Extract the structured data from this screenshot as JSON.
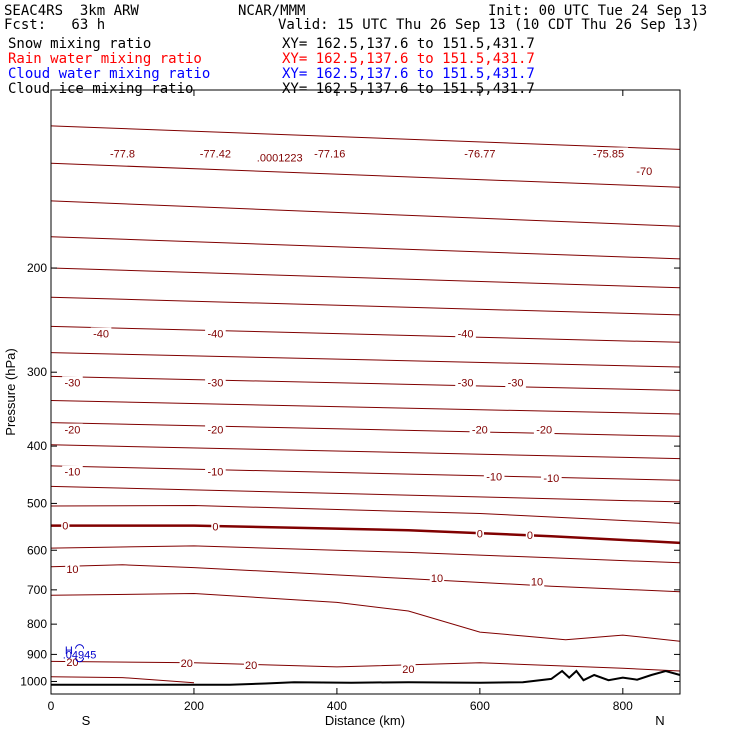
{
  "header": {
    "model": "SEAC4RS  3km ARW",
    "org": "NCAR/MMM",
    "init": "Init: 00 UTC Tue 24 Sep 13",
    "fcst": "Fcst:   63 h",
    "valid": "Valid: 15 UTC Thu 26 Sep 13 (10 CDT Thu 26 Sep 13)"
  },
  "fields": [
    {
      "name": "Snow mixing ratio",
      "xy": "XY= 162.5,137.6 to 151.5,431.7",
      "color": "#000000"
    },
    {
      "name": "Rain water mixing ratio",
      "xy": "XY= 162.5,137.6 to 151.5,431.7",
      "color": "#ff0000"
    },
    {
      "name": "Cloud water mixing ratio",
      "xy": "XY= 162.5,137.6 to 151.5,431.7",
      "color": "#0000ff"
    },
    {
      "name": "Cloud ice mixing ratio",
      "xy": "XY= 162.5,137.6 to 151.5,431.7",
      "color": "#000000"
    }
  ],
  "colors": {
    "contour": "#800000",
    "terrain": "#000000",
    "cloud_water": "#0000cc"
  },
  "chart_data": {
    "type": "line",
    "xlabel": "Distance (km)",
    "ylabel": "Pressure (hPa)",
    "x_ticks": [
      "0",
      "200",
      "400",
      "600",
      "800"
    ],
    "y_ticks": [
      "200",
      "300",
      "400",
      "500",
      "600",
      "700",
      "800",
      "900",
      "1000"
    ],
    "xlim": [
      0,
      880
    ],
    "ylim": [
      1050,
      100
    ],
    "y_scale": "log",
    "x_endpoints": [
      "S",
      "N"
    ],
    "contours": [
      {
        "points": [
          [
            0,
            115
          ],
          [
            880,
            126
          ]
        ]
      },
      {
        "points": [
          [
            0,
            133
          ],
          [
            880,
            146
          ]
        ],
        "label": "-70"
      },
      {
        "points": [
          [
            0,
            154
          ],
          [
            880,
            170
          ]
        ]
      },
      {
        "points": [
          [
            0,
            177
          ],
          [
            880,
            193
          ]
        ]
      },
      {
        "points": [
          [
            0,
            200
          ],
          [
            880,
            216
          ]
        ]
      },
      {
        "points": [
          [
            0,
            224
          ],
          [
            880,
            240
          ]
        ]
      },
      {
        "points": [
          [
            0,
            251
          ],
          [
            880,
            267
          ]
        ],
        "label": "-40"
      },
      {
        "points": [
          [
            0,
            278
          ],
          [
            880,
            294
          ]
        ]
      },
      {
        "points": [
          [
            0,
            305
          ],
          [
            880,
            322
          ]
        ],
        "label": "-30"
      },
      {
        "points": [
          [
            0,
            335
          ],
          [
            880,
            353
          ]
        ]
      },
      {
        "points": [
          [
            0,
            365
          ],
          [
            880,
            385
          ]
        ],
        "label": "-20"
      },
      {
        "points": [
          [
            0,
            398
          ],
          [
            880,
            420
          ]
        ]
      },
      {
        "points": [
          [
            0,
            432
          ],
          [
            880,
            457
          ]
        ],
        "label": "-10"
      },
      {
        "points": [
          [
            0,
            468
          ],
          [
            880,
            497
          ]
        ]
      },
      {
        "points": [
          [
            0,
            505
          ],
          [
            200,
            504
          ],
          [
            600,
            520
          ],
          [
            880,
            540
          ]
        ]
      },
      {
        "points": [
          [
            0,
            545
          ],
          [
            200,
            545
          ],
          [
            500,
            555
          ],
          [
            700,
            568
          ],
          [
            880,
            583
          ]
        ],
        "label": "0",
        "bold": true
      },
      {
        "points": [
          [
            0,
            595
          ],
          [
            200,
            590
          ],
          [
            500,
            605
          ],
          [
            700,
            618
          ],
          [
            880,
            630
          ]
        ]
      },
      {
        "points": [
          [
            0,
            640
          ],
          [
            100,
            635
          ],
          [
            200,
            642
          ],
          [
            500,
            670
          ],
          [
            700,
            690
          ],
          [
            880,
            705
          ]
        ],
        "label": "10"
      },
      {
        "points": [
          [
            0,
            715
          ],
          [
            200,
            710
          ],
          [
            400,
            735
          ],
          [
            500,
            760
          ],
          [
            600,
            825
          ],
          [
            720,
            850
          ],
          [
            800,
            835
          ],
          [
            880,
            855
          ]
        ]
      },
      {
        "points": [
          [
            0,
            925
          ],
          [
            200,
            930
          ],
          [
            400,
            945
          ],
          [
            600,
            930
          ],
          [
            800,
            950
          ],
          [
            880,
            960
          ]
        ],
        "label": "20"
      },
      {
        "points": [
          [
            0,
            982
          ],
          [
            100,
            985
          ],
          [
            200,
            1005
          ]
        ]
      }
    ],
    "labels": [
      {
        "text": "-77.8",
        "x": 100,
        "p": 128
      },
      {
        "text": "-77.42",
        "x": 230,
        "p": 128
      },
      {
        "text": "-77.16",
        "x": 390,
        "p": 128
      },
      {
        "text": "-76.77",
        "x": 600,
        "p": 128
      },
      {
        "text": "-75.85",
        "x": 780,
        "p": 128
      },
      {
        "text": ".0001223",
        "x": 320,
        "p": 130
      },
      {
        "text": "-70",
        "x": 830,
        "p": 137
      },
      {
        "text": "-40",
        "x": 70,
        "p": 258
      },
      {
        "text": "-40",
        "x": 230,
        "p": 258
      },
      {
        "text": "-40",
        "x": 580,
        "p": 258
      },
      {
        "text": "-30",
        "x": 30,
        "p": 312
      },
      {
        "text": "-30",
        "x": 230,
        "p": 312
      },
      {
        "text": "-30",
        "x": 580,
        "p": 312
      },
      {
        "text": "-30",
        "x": 650,
        "p": 312
      },
      {
        "text": "-20",
        "x": 30,
        "p": 375
      },
      {
        "text": "-20",
        "x": 230,
        "p": 375
      },
      {
        "text": "-20",
        "x": 600,
        "p": 375
      },
      {
        "text": "-20",
        "x": 690,
        "p": 375
      },
      {
        "text": "-10",
        "x": 30,
        "p": 442
      },
      {
        "text": "-10",
        "x": 230,
        "p": 442
      },
      {
        "text": "-10",
        "x": 620,
        "p": 450
      },
      {
        "text": "-10",
        "x": 700,
        "p": 453
      },
      {
        "text": "0",
        "x": 20,
        "p": 545
      },
      {
        "text": "0",
        "x": 230,
        "p": 547
      },
      {
        "text": "0",
        "x": 600,
        "p": 562
      },
      {
        "text": "0",
        "x": 670,
        "p": 565
      },
      {
        "text": "10",
        "x": 30,
        "p": 645
      },
      {
        "text": "10",
        "x": 540,
        "p": 668
      },
      {
        "text": "10",
        "x": 680,
        "p": 678
      },
      {
        "text": "20",
        "x": 30,
        "p": 927
      },
      {
        "text": "20",
        "x": 190,
        "p": 930
      },
      {
        "text": "20",
        "x": 280,
        "p": 938
      },
      {
        "text": "20",
        "x": 500,
        "p": 953
      }
    ],
    "terrain": [
      [
        0,
        1013
      ],
      [
        250,
        1013
      ],
      [
        300,
        1008
      ],
      [
        340,
        1003
      ],
      [
        420,
        1005
      ],
      [
        500,
        1003
      ],
      [
        600,
        1005
      ],
      [
        660,
        1003
      ],
      [
        700,
        990
      ],
      [
        715,
        960
      ],
      [
        725,
        985
      ],
      [
        735,
        960
      ],
      [
        745,
        995
      ],
      [
        760,
        975
      ],
      [
        780,
        995
      ],
      [
        800,
        985
      ],
      [
        820,
        993
      ],
      [
        840,
        975
      ],
      [
        860,
        960
      ],
      [
        880,
        975
      ]
    ],
    "cloud_water": [
      {
        "text": "H",
        "x": 25,
        "p": 884
      },
      {
        "text": ".04945",
        "x": 40,
        "p": 900
      }
    ],
    "grid": false
  }
}
